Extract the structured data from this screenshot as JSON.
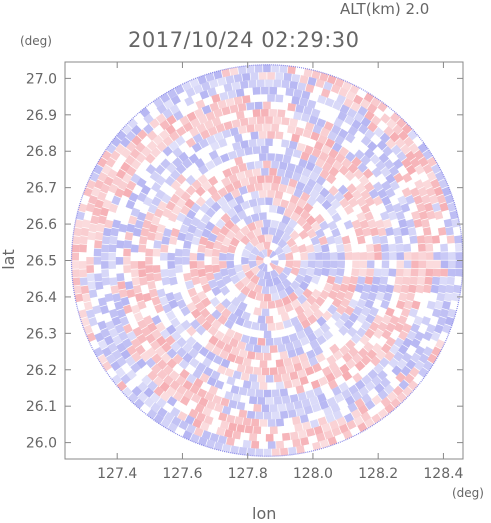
{
  "header": {
    "altitude_label": "ALT(km) 2.0",
    "timestamp": "2017/10/24 02:29:30"
  },
  "chart_data": {
    "type": "heatmap",
    "title": "2017/10/24 02:29:30",
    "subtitle": "ALT(km) 2.0",
    "xlabel": "lon",
    "ylabel": "lat",
    "x_unit": "(deg)",
    "y_unit": "(deg)",
    "xlim": [
      127.24,
      128.46
    ],
    "ylim": [
      25.955,
      27.045
    ],
    "x_ticks": [
      127.4,
      127.6,
      127.8,
      128.0,
      128.2,
      128.4
    ],
    "x_tick_labels": [
      "127.4",
      "127.6",
      "127.8",
      "128.0",
      "128.2",
      "128.4"
    ],
    "y_ticks": [
      26.0,
      26.1,
      26.2,
      26.3,
      26.4,
      26.5,
      26.6,
      26.7,
      26.8,
      26.9,
      27.0
    ],
    "y_tick_labels": [
      "26.0",
      "26.1",
      "26.2",
      "26.3",
      "26.4",
      "26.5",
      "26.6",
      "26.7",
      "26.8",
      "26.9",
      "27.0"
    ],
    "radar_center": {
      "lon": 127.86,
      "lat": 26.5
    },
    "radar_range_deg_lon": 0.6,
    "colors": {
      "positive": "#f4a0a6",
      "negative": "#a8a8f0",
      "neutral": "#ffffff",
      "axis": "#888888"
    },
    "grid": false,
    "legend": "none"
  }
}
